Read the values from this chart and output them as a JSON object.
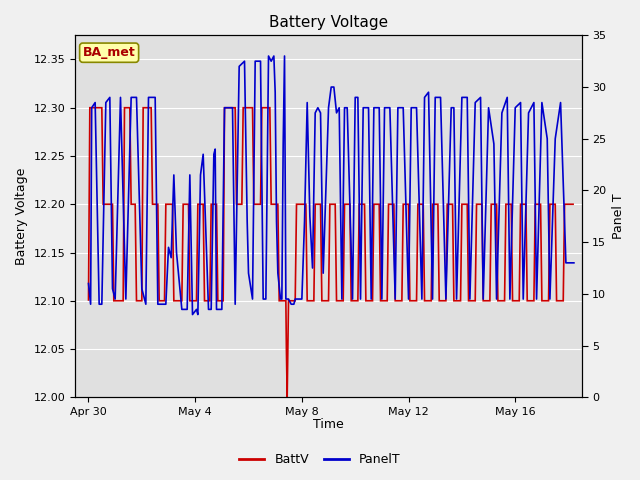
{
  "title": "Battery Voltage",
  "xlabel": "Time",
  "ylabel_left": "Battery Voltage",
  "ylabel_right": "Panel T",
  "ylim_left": [
    12.0,
    12.375
  ],
  "ylim_right": [
    0,
    35
  ],
  "yticks_left": [
    12.0,
    12.05,
    12.1,
    12.15,
    12.2,
    12.25,
    12.3,
    12.35
  ],
  "yticks_right": [
    0,
    5,
    10,
    15,
    20,
    25,
    30,
    35
  ],
  "fig_bg": "#f0f0f0",
  "plot_bg": "#e0e0e0",
  "inner_bg": "#d8d8d8",
  "label_box": "BA_met",
  "legend_items": [
    "BattV",
    "PanelT"
  ],
  "batt_color": "#cc0000",
  "panel_color": "#0000cc",
  "xlim": [
    -0.5,
    18.5
  ],
  "xtick_positions": [
    0,
    4,
    8,
    12,
    16
  ],
  "xtick_labels": [
    "Apr 30",
    "May 4",
    "May 8",
    "May 12",
    "May 16"
  ],
  "batt_data": [
    [
      0.0,
      12.1
    ],
    [
      0.05,
      12.3
    ],
    [
      0.5,
      12.3
    ],
    [
      0.55,
      12.2
    ],
    [
      0.9,
      12.2
    ],
    [
      0.95,
      12.1
    ],
    [
      1.3,
      12.1
    ],
    [
      1.35,
      12.3
    ],
    [
      1.55,
      12.3
    ],
    [
      1.6,
      12.2
    ],
    [
      1.75,
      12.2
    ],
    [
      1.8,
      12.1
    ],
    [
      2.0,
      12.1
    ],
    [
      2.05,
      12.3
    ],
    [
      2.35,
      12.3
    ],
    [
      2.4,
      12.2
    ],
    [
      2.55,
      12.2
    ],
    [
      2.6,
      12.2
    ],
    [
      2.65,
      12.1
    ],
    [
      2.85,
      12.1
    ],
    [
      2.9,
      12.2
    ],
    [
      3.1,
      12.2
    ],
    [
      3.15,
      12.2
    ],
    [
      3.2,
      12.1
    ],
    [
      3.5,
      12.1
    ],
    [
      3.55,
      12.2
    ],
    [
      3.75,
      12.2
    ],
    [
      3.8,
      12.1
    ],
    [
      4.05,
      12.1
    ],
    [
      4.1,
      12.2
    ],
    [
      4.3,
      12.2
    ],
    [
      4.35,
      12.1
    ],
    [
      4.55,
      12.1
    ],
    [
      4.6,
      12.2
    ],
    [
      4.8,
      12.2
    ],
    [
      4.85,
      12.1
    ],
    [
      5.05,
      12.1
    ],
    [
      5.1,
      12.3
    ],
    [
      5.5,
      12.3
    ],
    [
      5.55,
      12.2
    ],
    [
      5.75,
      12.2
    ],
    [
      5.8,
      12.3
    ],
    [
      6.15,
      12.3
    ],
    [
      6.2,
      12.2
    ],
    [
      6.45,
      12.2
    ],
    [
      6.5,
      12.3
    ],
    [
      6.8,
      12.3
    ],
    [
      6.85,
      12.2
    ],
    [
      7.1,
      12.2
    ],
    [
      7.15,
      12.1
    ],
    [
      7.35,
      12.1
    ],
    [
      7.4,
      12.1
    ],
    [
      7.42,
      12.05
    ],
    [
      7.45,
      12.0
    ],
    [
      7.5,
      12.1
    ],
    [
      7.55,
      12.1
    ],
    [
      7.75,
      12.1
    ],
    [
      7.8,
      12.2
    ],
    [
      8.15,
      12.2
    ],
    [
      8.2,
      12.1
    ],
    [
      8.45,
      12.1
    ],
    [
      8.5,
      12.2
    ],
    [
      8.7,
      12.2
    ],
    [
      8.75,
      12.1
    ],
    [
      9.0,
      12.1
    ],
    [
      9.05,
      12.2
    ],
    [
      9.25,
      12.2
    ],
    [
      9.3,
      12.1
    ],
    [
      9.55,
      12.1
    ],
    [
      9.6,
      12.2
    ],
    [
      9.8,
      12.2
    ],
    [
      9.85,
      12.1
    ],
    [
      10.1,
      12.1
    ],
    [
      10.15,
      12.2
    ],
    [
      10.35,
      12.2
    ],
    [
      10.4,
      12.1
    ],
    [
      10.65,
      12.1
    ],
    [
      10.7,
      12.2
    ],
    [
      10.9,
      12.2
    ],
    [
      10.95,
      12.1
    ],
    [
      11.2,
      12.1
    ],
    [
      11.25,
      12.2
    ],
    [
      11.45,
      12.2
    ],
    [
      11.5,
      12.1
    ],
    [
      11.75,
      12.1
    ],
    [
      11.8,
      12.2
    ],
    [
      12.0,
      12.2
    ],
    [
      12.05,
      12.1
    ],
    [
      12.3,
      12.1
    ],
    [
      12.35,
      12.2
    ],
    [
      12.55,
      12.2
    ],
    [
      12.6,
      12.1
    ],
    [
      12.85,
      12.1
    ],
    [
      12.9,
      12.2
    ],
    [
      13.1,
      12.2
    ],
    [
      13.15,
      12.1
    ],
    [
      13.4,
      12.1
    ],
    [
      13.45,
      12.2
    ],
    [
      13.65,
      12.2
    ],
    [
      13.7,
      12.1
    ],
    [
      13.95,
      12.1
    ],
    [
      14.0,
      12.2
    ],
    [
      14.2,
      12.2
    ],
    [
      14.25,
      12.1
    ],
    [
      14.5,
      12.1
    ],
    [
      14.55,
      12.2
    ],
    [
      14.75,
      12.2
    ],
    [
      14.8,
      12.1
    ],
    [
      15.05,
      12.1
    ],
    [
      15.1,
      12.2
    ],
    [
      15.3,
      12.2
    ],
    [
      15.35,
      12.1
    ],
    [
      15.6,
      12.1
    ],
    [
      15.65,
      12.2
    ],
    [
      15.85,
      12.2
    ],
    [
      15.9,
      12.1
    ],
    [
      16.15,
      12.1
    ],
    [
      16.2,
      12.2
    ],
    [
      16.4,
      12.2
    ],
    [
      16.45,
      12.1
    ],
    [
      16.7,
      12.1
    ],
    [
      16.75,
      12.2
    ],
    [
      16.95,
      12.2
    ],
    [
      17.0,
      12.1
    ],
    [
      17.25,
      12.1
    ],
    [
      17.3,
      12.2
    ],
    [
      17.5,
      12.2
    ],
    [
      17.55,
      12.1
    ],
    [
      17.8,
      12.1
    ],
    [
      17.85,
      12.2
    ],
    [
      18.2,
      12.2
    ]
  ],
  "panel_data_raw": [
    [
      0.0,
      11.0
    ],
    [
      0.08,
      9.0
    ],
    [
      0.12,
      28.0
    ],
    [
      0.25,
      28.5
    ],
    [
      0.4,
      9.0
    ],
    [
      0.5,
      9.0
    ],
    [
      0.65,
      28.5
    ],
    [
      0.8,
      29.0
    ],
    [
      0.9,
      10.5
    ],
    [
      1.0,
      9.5
    ],
    [
      1.2,
      29.0
    ],
    [
      1.4,
      9.5
    ],
    [
      1.6,
      29.0
    ],
    [
      1.8,
      29.0
    ],
    [
      2.0,
      10.5
    ],
    [
      2.15,
      9.0
    ],
    [
      2.25,
      29.0
    ],
    [
      2.5,
      29.0
    ],
    [
      2.6,
      9.0
    ],
    [
      2.9,
      9.0
    ],
    [
      3.0,
      14.5
    ],
    [
      3.1,
      13.5
    ],
    [
      3.2,
      21.5
    ],
    [
      3.3,
      14.0
    ],
    [
      3.5,
      8.5
    ],
    [
      3.7,
      8.5
    ],
    [
      3.8,
      21.5
    ],
    [
      3.9,
      8.0
    ],
    [
      4.05,
      8.5
    ],
    [
      4.1,
      8.0
    ],
    [
      4.2,
      21.5
    ],
    [
      4.3,
      23.5
    ],
    [
      4.4,
      16.0
    ],
    [
      4.5,
      8.5
    ],
    [
      4.6,
      8.5
    ],
    [
      4.7,
      23.5
    ],
    [
      4.75,
      24.0
    ],
    [
      4.8,
      8.5
    ],
    [
      4.9,
      8.5
    ],
    [
      5.0,
      8.5
    ],
    [
      5.1,
      28.0
    ],
    [
      5.3,
      28.0
    ],
    [
      5.4,
      28.0
    ],
    [
      5.5,
      9.0
    ],
    [
      5.65,
      32.0
    ],
    [
      5.85,
      32.5
    ],
    [
      5.95,
      17.0
    ],
    [
      6.0,
      12.0
    ],
    [
      6.15,
      9.5
    ],
    [
      6.25,
      32.5
    ],
    [
      6.45,
      32.5
    ],
    [
      6.55,
      9.5
    ],
    [
      6.65,
      9.5
    ],
    [
      6.75,
      33.0
    ],
    [
      6.85,
      32.5
    ],
    [
      6.95,
      33.0
    ],
    [
      7.0,
      29.5
    ],
    [
      7.05,
      17.0
    ],
    [
      7.1,
      12.0
    ],
    [
      7.2,
      9.5
    ],
    [
      7.25,
      9.5
    ],
    [
      7.3,
      24.5
    ],
    [
      7.35,
      33.0
    ],
    [
      7.4,
      9.5
    ],
    [
      7.5,
      9.5
    ],
    [
      7.6,
      9.0
    ],
    [
      7.7,
      9.0
    ],
    [
      7.75,
      9.5
    ],
    [
      7.85,
      9.5
    ],
    [
      8.0,
      9.5
    ],
    [
      8.1,
      17.0
    ],
    [
      8.2,
      28.5
    ],
    [
      8.3,
      17.5
    ],
    [
      8.4,
      12.5
    ],
    [
      8.5,
      27.5
    ],
    [
      8.6,
      28.0
    ],
    [
      8.7,
      27.5
    ],
    [
      8.8,
      12.0
    ],
    [
      9.0,
      28.0
    ],
    [
      9.1,
      30.0
    ],
    [
      9.2,
      30.0
    ],
    [
      9.3,
      27.5
    ],
    [
      9.4,
      28.0
    ],
    [
      9.5,
      9.5
    ],
    [
      9.6,
      28.0
    ],
    [
      9.7,
      28.0
    ],
    [
      9.9,
      9.5
    ],
    [
      10.0,
      29.0
    ],
    [
      10.1,
      29.0
    ],
    [
      10.2,
      9.5
    ],
    [
      10.3,
      28.0
    ],
    [
      10.5,
      28.0
    ],
    [
      10.6,
      9.5
    ],
    [
      10.7,
      28.0
    ],
    [
      10.9,
      28.0
    ],
    [
      11.0,
      9.5
    ],
    [
      11.1,
      28.0
    ],
    [
      11.3,
      28.0
    ],
    [
      11.5,
      9.5
    ],
    [
      11.6,
      28.0
    ],
    [
      11.8,
      28.0
    ],
    [
      12.0,
      9.5
    ],
    [
      12.1,
      28.0
    ],
    [
      12.3,
      28.0
    ],
    [
      12.5,
      9.5
    ],
    [
      12.6,
      29.0
    ],
    [
      12.75,
      29.5
    ],
    [
      12.9,
      9.5
    ],
    [
      13.0,
      29.0
    ],
    [
      13.2,
      29.0
    ],
    [
      13.4,
      9.5
    ],
    [
      13.6,
      28.0
    ],
    [
      13.7,
      28.0
    ],
    [
      13.8,
      9.5
    ],
    [
      14.0,
      29.0
    ],
    [
      14.2,
      29.0
    ],
    [
      14.3,
      9.5
    ],
    [
      14.5,
      28.5
    ],
    [
      14.7,
      29.0
    ],
    [
      14.8,
      9.5
    ],
    [
      15.0,
      28.0
    ],
    [
      15.2,
      24.5
    ],
    [
      15.3,
      9.5
    ],
    [
      15.5,
      27.5
    ],
    [
      15.7,
      29.0
    ],
    [
      15.8,
      9.5
    ],
    [
      16.0,
      28.0
    ],
    [
      16.2,
      28.5
    ],
    [
      16.3,
      9.5
    ],
    [
      16.5,
      27.5
    ],
    [
      16.7,
      28.5
    ],
    [
      16.8,
      9.5
    ],
    [
      17.0,
      28.5
    ],
    [
      17.2,
      25.0
    ],
    [
      17.3,
      9.5
    ],
    [
      17.5,
      25.0
    ],
    [
      17.7,
      28.5
    ],
    [
      17.9,
      13.0
    ],
    [
      18.2,
      13.0
    ]
  ]
}
